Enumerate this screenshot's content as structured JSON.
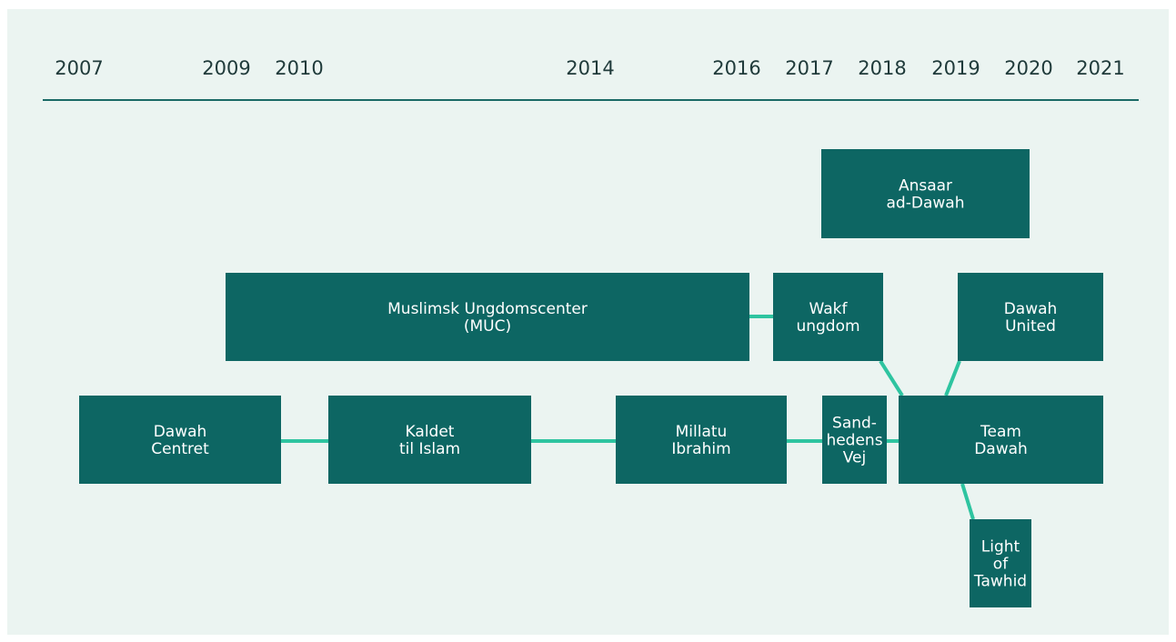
{
  "years": [
    "2007",
    "2009",
    "2010",
    "2014",
    "2016",
    "2017",
    "2018",
    "2019",
    "2020",
    "2021"
  ],
  "nodes": [
    {
      "lines": [
        "Ansaar",
        "ad-Dawah"
      ]
    },
    {
      "lines": [
        "Muslimsk Ungdomscenter",
        "(MUC)"
      ]
    },
    {
      "lines": [
        "Wakf",
        "ungdom"
      ]
    },
    {
      "lines": [
        "Dawah",
        "United"
      ]
    },
    {
      "lines": [
        "Dawah",
        "Centret"
      ]
    },
    {
      "lines": [
        "Kaldet",
        "til Islam"
      ]
    },
    {
      "lines": [
        "Millatu",
        "Ibrahim"
      ]
    },
    {
      "lines": [
        "Sand-",
        "hedens",
        "Vej"
      ]
    },
    {
      "lines": [
        "Team",
        "Dawah"
      ]
    },
    {
      "lines": [
        "Light",
        "of",
        "Tawhid"
      ]
    }
  ]
}
